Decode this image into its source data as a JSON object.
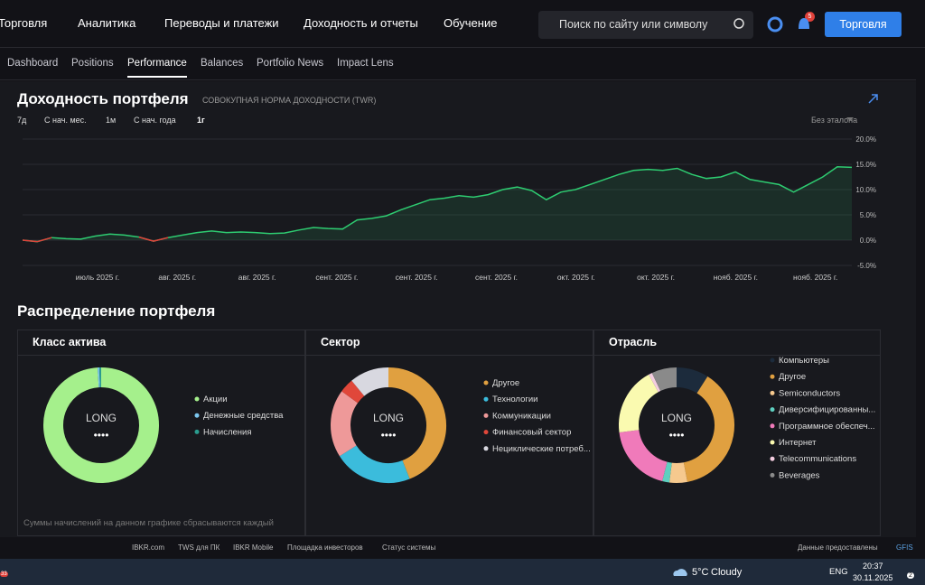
{
  "nav": {
    "items": [
      "Торговля",
      "Аналитика",
      "Переводы и платежи",
      "Доходность и отчеты",
      "Обучение"
    ],
    "search": "Поиск по сайту или символу",
    "notifications": "5",
    "button": "Торговля"
  },
  "tabs": [
    "Dashboard",
    "Positions",
    "Performance",
    "Balances",
    "Portfolio News",
    "Impact Lens"
  ],
  "performance": {
    "title": "Доходность портфеля",
    "subtitle": "СОВОКУПНАЯ НОРМА ДОХОДНОСТИ (TWR)",
    "periods": [
      "7д",
      "С нач. мес.",
      "1м",
      "С нач. года",
      "1г"
    ],
    "benchmark": "Без эталона",
    "chart": {
      "type": "line",
      "color": "#2ecc71",
      "negative_color": "#e0413a",
      "ylim": [
        -5,
        20
      ],
      "yticks": [
        {
          "value": 20,
          "label": "20.0%"
        },
        {
          "value": 15,
          "label": "15.0%"
        },
        {
          "value": 10,
          "label": "10.0%"
        },
        {
          "value": 5,
          "label": "5.0%"
        },
        {
          "value": 0,
          "label": "0.0%"
        },
        {
          "value": -5,
          "label": "-5.0%"
        }
      ],
      "x_labels": [
        "июль 2025 г.",
        "авг. 2025 г.",
        "авг. 2025 г.",
        "сент. 2025 г.",
        "сент. 2025 г.",
        "сент. 2025 г.",
        "окт. 2025 г.",
        "окт. 2025 г.",
        "нояб. 2025 г.",
        "нояб. 2025 г."
      ],
      "values": [
        0,
        -0.3,
        0.5,
        0.3,
        0.2,
        0.8,
        1.2,
        1.0,
        0.6,
        -0.2,
        0.5,
        1.0,
        1.5,
        1.8,
        1.5,
        1.6,
        1.5,
        1.3,
        1.4,
        2.0,
        2.5,
        2.3,
        2.2,
        4.0,
        4.3,
        4.8,
        6.0,
        7.0,
        8.0,
        8.3,
        8.8,
        8.5,
        9.0,
        10.0,
        10.5,
        9.8,
        8.0,
        9.5,
        10.0,
        11.0,
        12.0,
        13.0,
        13.8,
        14.0,
        13.8,
        14.2,
        13.0,
        12.2,
        12.5,
        13.5,
        12.0,
        11.5,
        11.0,
        9.5,
        11.0,
        12.5,
        14.5,
        14.4
      ]
    }
  },
  "allocation": {
    "title": "Распределение портфеля",
    "center_label": "LONG",
    "center_mask": "••••",
    "panels": [
      {
        "title": "Класс актива",
        "note": "Суммы начислений на данном графике сбрасываются каждый",
        "series": [
          {
            "name": "Акции",
            "color": "#a5f08c",
            "value": 99
          },
          {
            "name": "Денежные средства",
            "color": "#7cc7ef",
            "value": 0.5
          },
          {
            "name": "Начисления",
            "color": "#2a9d8f",
            "value": 0.5
          }
        ]
      },
      {
        "title": "Сектор",
        "series": [
          {
            "name": "Другое",
            "color": "#e0a040",
            "value": 44
          },
          {
            "name": "Технологии",
            "color": "#3bbcdc",
            "value": 22
          },
          {
            "name": "Коммуникации",
            "color": "#ee9999",
            "value": 19
          },
          {
            "name": "Финансовый сектор",
            "color": "#e0473a",
            "value": 4
          },
          {
            "name": "Нециклические потреб...",
            "color": "#d8d8e0",
            "value": 11
          }
        ]
      },
      {
        "title": "Отрасль",
        "series": [
          {
            "name": "Компьютеры",
            "color": "#1c2b3c",
            "value": 9
          },
          {
            "name": "Другое",
            "color": "#e0a040",
            "value": 38
          },
          {
            "name": "Semiconductors",
            "color": "#f6c98e",
            "value": 5
          },
          {
            "name": "Диверсифицированны...",
            "color": "#5ecfc0",
            "value": 2
          },
          {
            "name": "Программное обеспеч...",
            "color": "#f07aba",
            "value": 19
          },
          {
            "name": "Интернет",
            "color": "#fafab0",
            "value": 19
          },
          {
            "name": "Telecommunications",
            "color": "#f4cde0",
            "value": 1
          },
          {
            "name": "Beverages",
            "color": "#8a8a8a",
            "value": 7
          }
        ]
      }
    ]
  },
  "footer": {
    "links": [
      "IBKR.com",
      "TWS для ПК",
      "IBKR Mobile",
      "Площадка инвесторов",
      "Статус системы"
    ],
    "credit": "Данные предоставлены",
    "brand": "GFIS"
  },
  "taskbar": {
    "badge": "33",
    "temperature": "5°C",
    "weather": "Cloudy",
    "language": "ENG",
    "time": "20:37",
    "date": "30.11.2025",
    "notifications": "2"
  }
}
